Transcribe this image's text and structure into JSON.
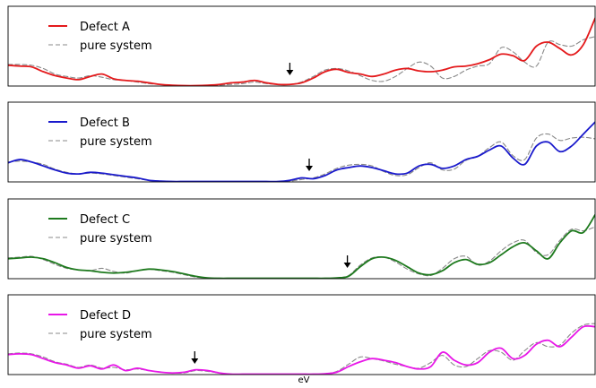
{
  "chart_data": [
    {
      "type": "line",
      "xlabel": "",
      "ylim": [
        0,
        1
      ],
      "legend_position": "upper-left",
      "series": [
        {
          "name": "Defect A",
          "color": "#e41a1c",
          "style": "solid",
          "x": [
            0,
            0.02,
            0.04,
            0.06,
            0.08,
            0.1,
            0.12,
            0.14,
            0.16,
            0.18,
            0.2,
            0.22,
            0.24,
            0.26,
            0.28,
            0.3,
            0.32,
            0.34,
            0.36,
            0.38,
            0.4,
            0.42,
            0.44,
            0.46,
            0.48,
            0.5,
            0.52,
            0.54,
            0.56,
            0.58,
            0.6,
            0.62,
            0.64,
            0.66,
            0.68,
            0.7,
            0.72,
            0.74,
            0.76,
            0.78,
            0.8,
            0.82,
            0.84,
            0.86,
            0.88,
            0.9,
            0.92,
            0.94,
            0.96,
            0.98,
            1.0
          ],
          "y": [
            0.26,
            0.25,
            0.24,
            0.18,
            0.13,
            0.1,
            0.08,
            0.12,
            0.15,
            0.09,
            0.07,
            0.06,
            0.04,
            0.02,
            0.01,
            0.005,
            0.005,
            0.01,
            0.02,
            0.04,
            0.05,
            0.07,
            0.04,
            0.02,
            0.02,
            0.04,
            0.1,
            0.18,
            0.21,
            0.17,
            0.15,
            0.12,
            0.15,
            0.2,
            0.22,
            0.19,
            0.18,
            0.2,
            0.24,
            0.25,
            0.28,
            0.33,
            0.4,
            0.38,
            0.32,
            0.5,
            0.55,
            0.47,
            0.39,
            0.52,
            0.85
          ]
        },
        {
          "name": "pure system",
          "color": "#888888",
          "style": "dashed",
          "x": [
            0,
            0.02,
            0.04,
            0.06,
            0.08,
            0.1,
            0.12,
            0.14,
            0.16,
            0.18,
            0.2,
            0.22,
            0.24,
            0.26,
            0.28,
            0.3,
            0.32,
            0.34,
            0.36,
            0.38,
            0.4,
            0.42,
            0.44,
            0.46,
            0.48,
            0.5,
            0.52,
            0.54,
            0.56,
            0.58,
            0.6,
            0.62,
            0.64,
            0.66,
            0.68,
            0.7,
            0.72,
            0.74,
            0.76,
            0.78,
            0.8,
            0.82,
            0.84,
            0.86,
            0.88,
            0.9,
            0.92,
            0.94,
            0.96,
            0.98,
            1.0
          ],
          "y": [
            0.27,
            0.27,
            0.26,
            0.22,
            0.15,
            0.12,
            0.1,
            0.13,
            0.11,
            0.08,
            0.07,
            0.05,
            0.03,
            0.02,
            0.01,
            0.005,
            0.005,
            0.005,
            0.01,
            0.02,
            0.03,
            0.05,
            0.03,
            0.02,
            0.02,
            0.05,
            0.12,
            0.2,
            0.22,
            0.19,
            0.13,
            0.07,
            0.06,
            0.12,
            0.22,
            0.3,
            0.25,
            0.1,
            0.12,
            0.2,
            0.25,
            0.28,
            0.48,
            0.43,
            0.3,
            0.25,
            0.55,
            0.52,
            0.5,
            0.58,
            0.62
          ]
        }
      ],
      "annotations": [
        {
          "type": "arrow",
          "x": 0.48
        }
      ]
    },
    {
      "type": "line",
      "xlabel": "",
      "ylim": [
        0,
        1
      ],
      "legend_position": "upper-left",
      "series": [
        {
          "name": "Defect B",
          "color": "#1a1acc",
          "style": "solid",
          "x": [
            0,
            0.02,
            0.04,
            0.06,
            0.08,
            0.1,
            0.12,
            0.14,
            0.16,
            0.18,
            0.2,
            0.22,
            0.24,
            0.26,
            0.28,
            0.3,
            0.32,
            0.34,
            0.36,
            0.38,
            0.4,
            0.42,
            0.44,
            0.46,
            0.48,
            0.5,
            0.52,
            0.54,
            0.56,
            0.58,
            0.6,
            0.62,
            0.64,
            0.66,
            0.68,
            0.7,
            0.72,
            0.74,
            0.76,
            0.78,
            0.8,
            0.82,
            0.84,
            0.86,
            0.88,
            0.9,
            0.92,
            0.94,
            0.96,
            0.98,
            1.0
          ],
          "y": [
            0.24,
            0.28,
            0.25,
            0.2,
            0.15,
            0.11,
            0.1,
            0.12,
            0.11,
            0.09,
            0.07,
            0.05,
            0.02,
            0.01,
            0.005,
            0.005,
            0.005,
            0.005,
            0.005,
            0.005,
            0.005,
            0.005,
            0.005,
            0.005,
            0.02,
            0.05,
            0.04,
            0.08,
            0.15,
            0.18,
            0.2,
            0.18,
            0.14,
            0.1,
            0.11,
            0.2,
            0.22,
            0.17,
            0.2,
            0.28,
            0.32,
            0.4,
            0.45,
            0.3,
            0.22,
            0.45,
            0.5,
            0.38,
            0.45,
            0.6,
            0.75
          ]
        },
        {
          "name": "pure system",
          "color": "#888888",
          "style": "dashed",
          "x": [
            0,
            0.02,
            0.04,
            0.06,
            0.08,
            0.1,
            0.12,
            0.14,
            0.16,
            0.18,
            0.2,
            0.22,
            0.24,
            0.26,
            0.28,
            0.3,
            0.32,
            0.34,
            0.36,
            0.38,
            0.4,
            0.42,
            0.44,
            0.46,
            0.48,
            0.5,
            0.52,
            0.54,
            0.56,
            0.58,
            0.6,
            0.62,
            0.64,
            0.66,
            0.68,
            0.7,
            0.72,
            0.74,
            0.76,
            0.78,
            0.8,
            0.82,
            0.84,
            0.86,
            0.88,
            0.9,
            0.92,
            0.94,
            0.96,
            0.98,
            1.0
          ],
          "y": [
            0.25,
            0.26,
            0.25,
            0.22,
            0.16,
            0.12,
            0.1,
            0.11,
            0.1,
            0.08,
            0.06,
            0.04,
            0.02,
            0.01,
            0.005,
            0.005,
            0.005,
            0.005,
            0.005,
            0.005,
            0.005,
            0.005,
            0.005,
            0.005,
            0.01,
            0.03,
            0.05,
            0.1,
            0.17,
            0.21,
            0.22,
            0.2,
            0.13,
            0.08,
            0.09,
            0.18,
            0.24,
            0.15,
            0.16,
            0.27,
            0.32,
            0.43,
            0.5,
            0.33,
            0.28,
            0.55,
            0.6,
            0.52,
            0.55,
            0.56,
            0.54
          ]
        }
      ],
      "annotations": [
        {
          "type": "arrow",
          "x": 0.513
        }
      ]
    },
    {
      "type": "line",
      "xlabel": "",
      "ylim": [
        0,
        1
      ],
      "legend_position": "upper-left",
      "series": [
        {
          "name": "Defect C",
          "color": "#1e7a1e",
          "style": "solid",
          "x": [
            0,
            0.02,
            0.04,
            0.06,
            0.08,
            0.1,
            0.12,
            0.14,
            0.16,
            0.18,
            0.2,
            0.22,
            0.24,
            0.26,
            0.28,
            0.3,
            0.32,
            0.34,
            0.36,
            0.38,
            0.4,
            0.42,
            0.44,
            0.46,
            0.48,
            0.5,
            0.52,
            0.54,
            0.56,
            0.58,
            0.6,
            0.62,
            0.64,
            0.66,
            0.68,
            0.7,
            0.72,
            0.74,
            0.76,
            0.78,
            0.8,
            0.82,
            0.84,
            0.86,
            0.88,
            0.9,
            0.92,
            0.94,
            0.96,
            0.98,
            1.0
          ],
          "y": [
            0.25,
            0.26,
            0.27,
            0.25,
            0.2,
            0.14,
            0.11,
            0.1,
            0.08,
            0.07,
            0.08,
            0.1,
            0.12,
            0.11,
            0.09,
            0.06,
            0.03,
            0.01,
            0.005,
            0.005,
            0.005,
            0.005,
            0.005,
            0.005,
            0.005,
            0.005,
            0.005,
            0.005,
            0.01,
            0.03,
            0.15,
            0.25,
            0.27,
            0.23,
            0.15,
            0.07,
            0.05,
            0.1,
            0.2,
            0.24,
            0.18,
            0.2,
            0.3,
            0.4,
            0.45,
            0.35,
            0.25,
            0.45,
            0.6,
            0.58,
            0.8
          ]
        },
        {
          "name": "pure system",
          "color": "#888888",
          "style": "dashed",
          "x": [
            0,
            0.02,
            0.04,
            0.06,
            0.08,
            0.1,
            0.12,
            0.14,
            0.16,
            0.18,
            0.2,
            0.22,
            0.24,
            0.26,
            0.28,
            0.3,
            0.32,
            0.34,
            0.36,
            0.38,
            0.4,
            0.42,
            0.44,
            0.46,
            0.48,
            0.5,
            0.52,
            0.54,
            0.56,
            0.58,
            0.6,
            0.62,
            0.64,
            0.66,
            0.68,
            0.7,
            0.72,
            0.74,
            0.76,
            0.78,
            0.8,
            0.82,
            0.84,
            0.86,
            0.88,
            0.9,
            0.92,
            0.94,
            0.96,
            0.98,
            1.0
          ],
          "y": [
            0.26,
            0.27,
            0.28,
            0.24,
            0.18,
            0.13,
            0.11,
            0.1,
            0.13,
            0.09,
            0.07,
            0.1,
            0.12,
            0.1,
            0.08,
            0.05,
            0.02,
            0.01,
            0.005,
            0.005,
            0.005,
            0.005,
            0.005,
            0.005,
            0.005,
            0.005,
            0.005,
            0.005,
            0.01,
            0.04,
            0.17,
            0.26,
            0.27,
            0.21,
            0.12,
            0.06,
            0.04,
            0.13,
            0.25,
            0.28,
            0.17,
            0.22,
            0.35,
            0.45,
            0.48,
            0.33,
            0.3,
            0.48,
            0.62,
            0.6,
            0.65
          ]
        }
      ],
      "annotations": [
        {
          "type": "arrow",
          "x": 0.578
        }
      ]
    },
    {
      "type": "line",
      "xlabel": "eV",
      "ylim": [
        0,
        1
      ],
      "legend_position": "upper-left",
      "series": [
        {
          "name": "Defect D",
          "color": "#e817e8",
          "style": "solid",
          "x": [
            0,
            0.02,
            0.04,
            0.06,
            0.08,
            0.1,
            0.12,
            0.14,
            0.16,
            0.18,
            0.2,
            0.22,
            0.24,
            0.26,
            0.28,
            0.3,
            0.32,
            0.34,
            0.36,
            0.38,
            0.4,
            0.42,
            0.44,
            0.46,
            0.48,
            0.5,
            0.52,
            0.54,
            0.56,
            0.58,
            0.6,
            0.62,
            0.64,
            0.66,
            0.68,
            0.7,
            0.72,
            0.74,
            0.76,
            0.78,
            0.8,
            0.82,
            0.84,
            0.86,
            0.88,
            0.9,
            0.92,
            0.94,
            0.96,
            0.98,
            1.0
          ],
          "y": [
            0.25,
            0.26,
            0.25,
            0.2,
            0.15,
            0.12,
            0.08,
            0.11,
            0.07,
            0.12,
            0.05,
            0.08,
            0.05,
            0.03,
            0.02,
            0.03,
            0.06,
            0.05,
            0.02,
            0.005,
            0.005,
            0.005,
            0.005,
            0.005,
            0.005,
            0.005,
            0.005,
            0.01,
            0.03,
            0.1,
            0.16,
            0.2,
            0.18,
            0.15,
            0.1,
            0.07,
            0.1,
            0.28,
            0.18,
            0.12,
            0.15,
            0.28,
            0.33,
            0.2,
            0.24,
            0.38,
            0.43,
            0.35,
            0.47,
            0.6,
            0.6
          ]
        },
        {
          "name": "pure system",
          "color": "#888888",
          "style": "dashed",
          "x": [
            0,
            0.02,
            0.04,
            0.06,
            0.08,
            0.1,
            0.12,
            0.14,
            0.16,
            0.18,
            0.2,
            0.22,
            0.24,
            0.26,
            0.28,
            0.3,
            0.32,
            0.34,
            0.36,
            0.38,
            0.4,
            0.42,
            0.44,
            0.46,
            0.48,
            0.5,
            0.52,
            0.54,
            0.56,
            0.58,
            0.6,
            0.62,
            0.64,
            0.66,
            0.68,
            0.7,
            0.72,
            0.74,
            0.76,
            0.78,
            0.8,
            0.82,
            0.84,
            0.86,
            0.88,
            0.9,
            0.92,
            0.94,
            0.96,
            0.98,
            1.0
          ],
          "y": [
            0.26,
            0.27,
            0.26,
            0.22,
            0.16,
            0.13,
            0.09,
            0.12,
            0.08,
            0.09,
            0.06,
            0.07,
            0.05,
            0.03,
            0.02,
            0.02,
            0.05,
            0.04,
            0.02,
            0.005,
            0.005,
            0.005,
            0.005,
            0.005,
            0.005,
            0.005,
            0.005,
            0.01,
            0.04,
            0.13,
            0.22,
            0.2,
            0.17,
            0.13,
            0.1,
            0.08,
            0.15,
            0.24,
            0.12,
            0.1,
            0.2,
            0.3,
            0.28,
            0.18,
            0.3,
            0.4,
            0.35,
            0.37,
            0.52,
            0.62,
            0.64
          ]
        }
      ],
      "annotations": [
        {
          "type": "arrow",
          "x": 0.318
        }
      ]
    }
  ]
}
